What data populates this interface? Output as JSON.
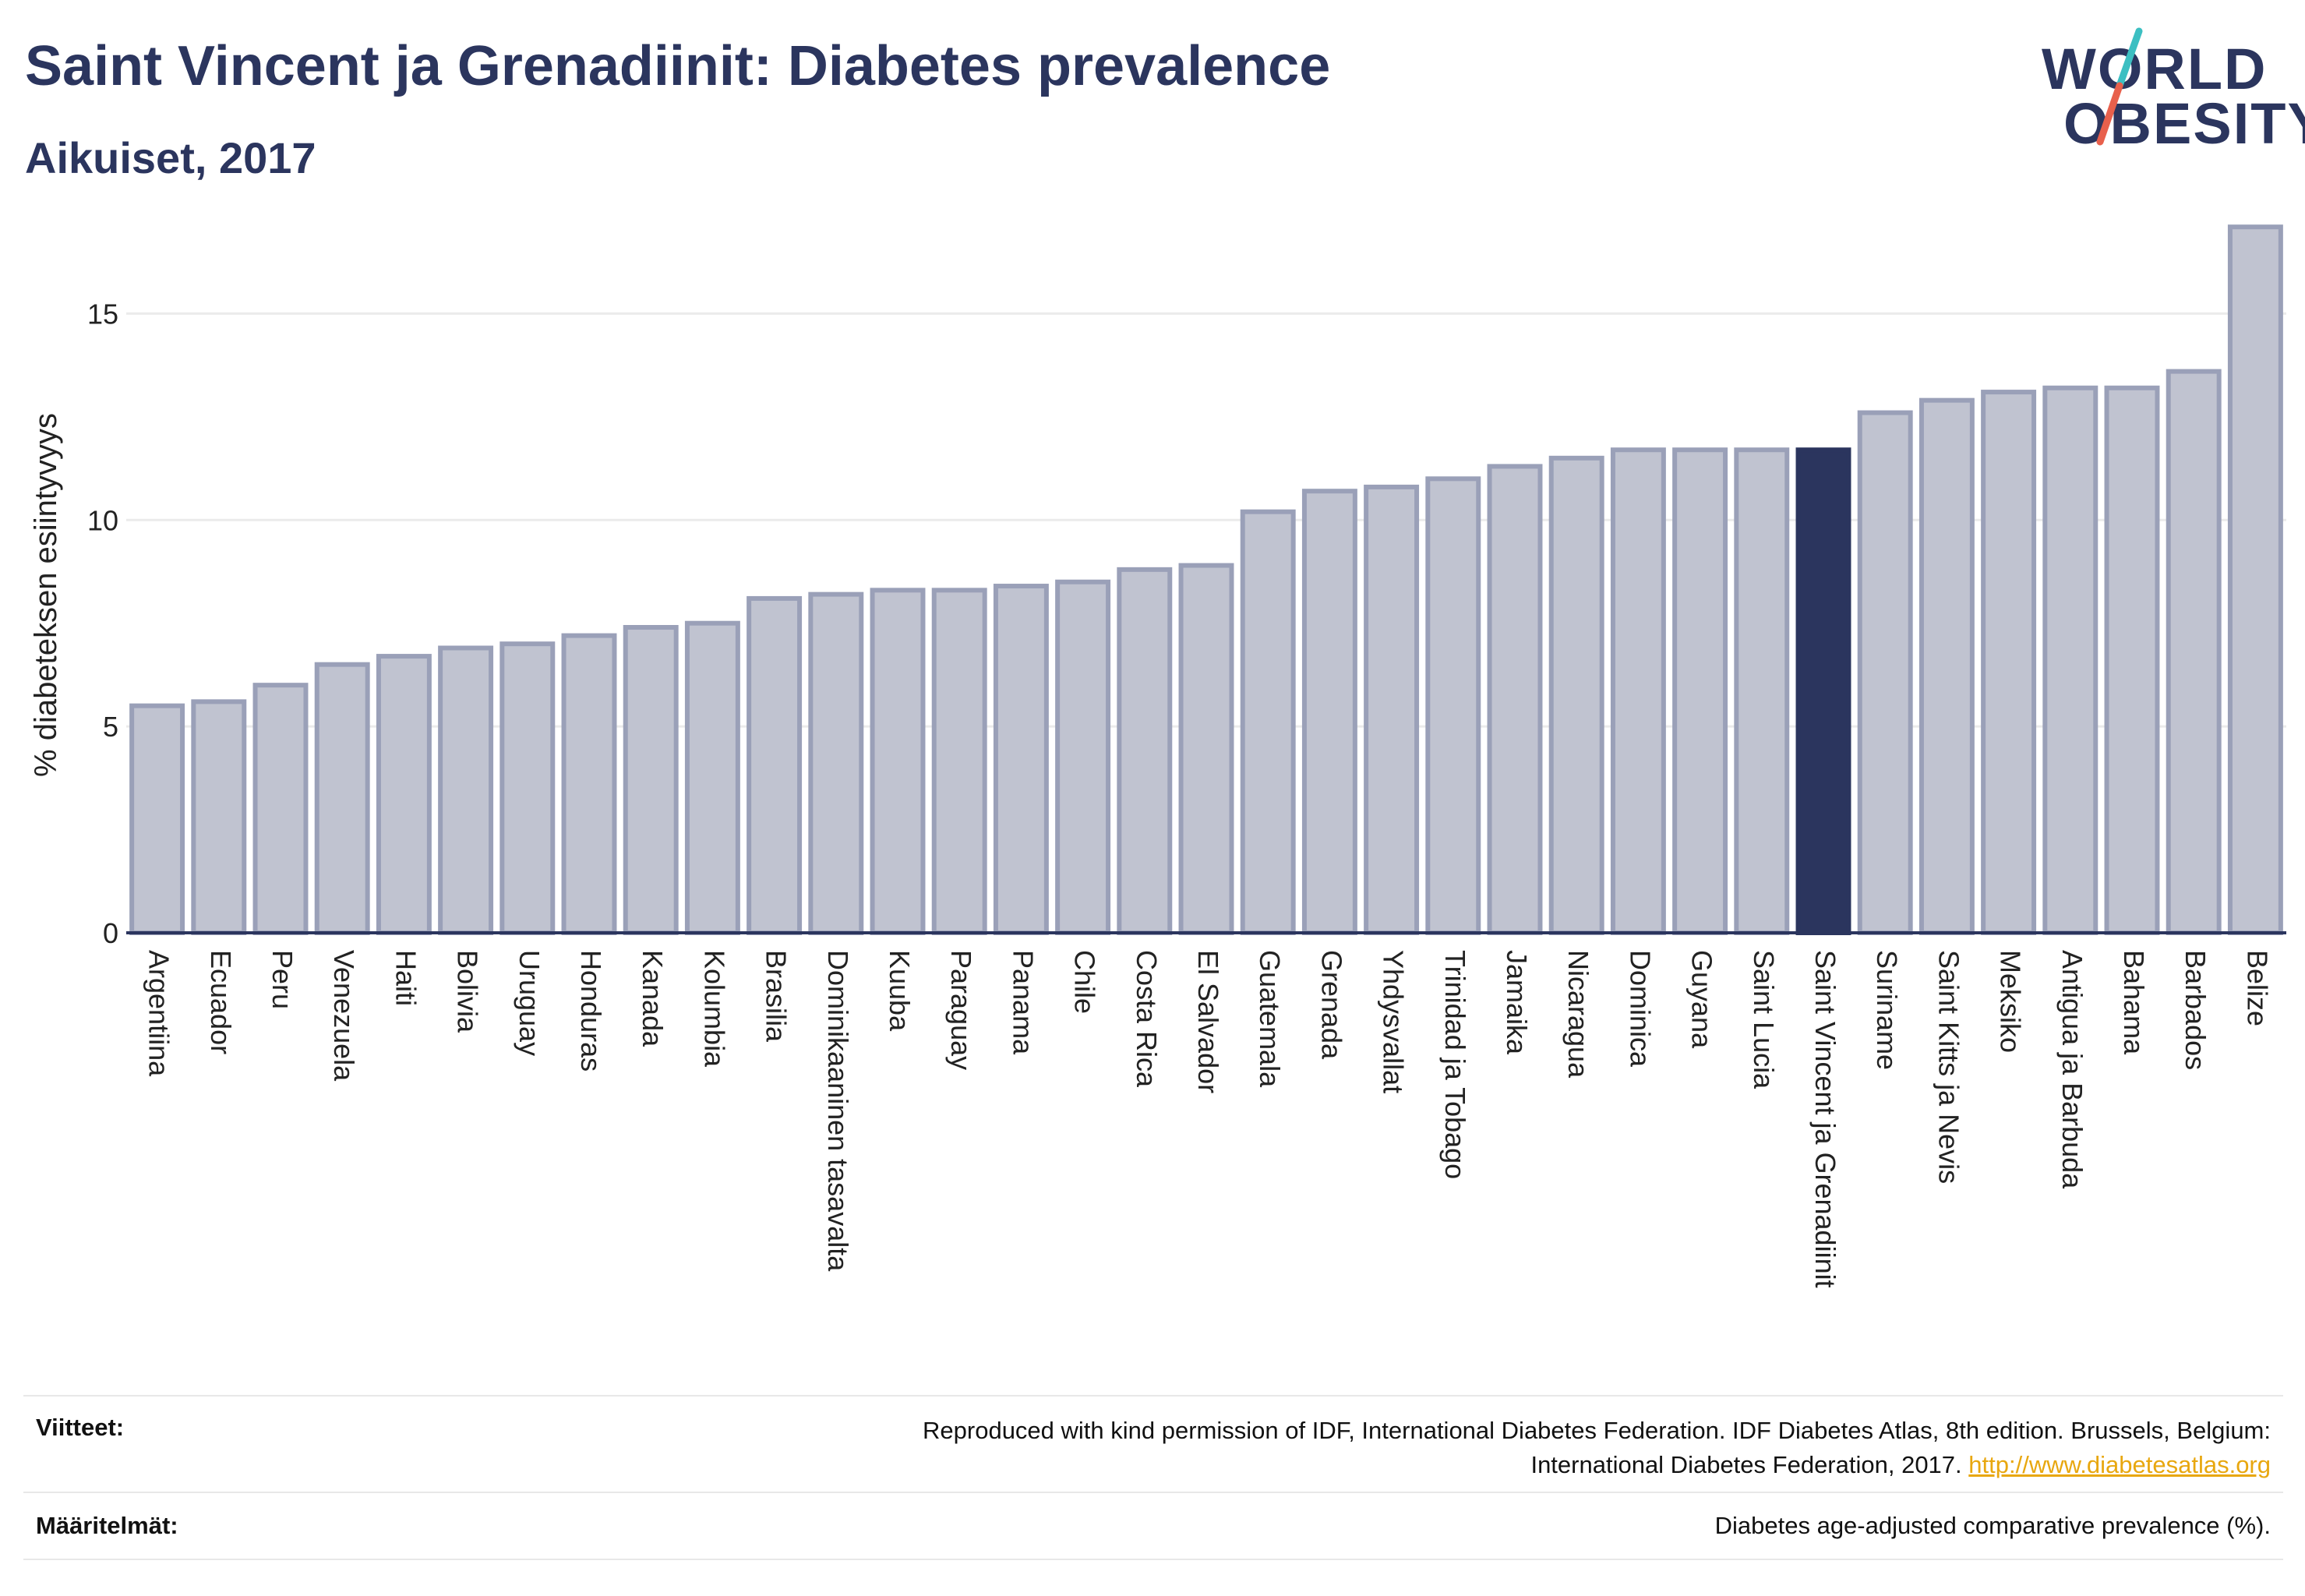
{
  "header": {
    "title": "Saint Vincent ja Grenadiinit: Diabetes prevalence",
    "subtitle": "Aikuiset, 2017"
  },
  "logo": {
    "line1": "WORLD",
    "line2": "OBESITY",
    "accent_colors": [
      "#3cbfc2",
      "#e8604c"
    ]
  },
  "footer": {
    "references_label": "Viitteet:",
    "references_line1": "Reproduced with kind permission of IDF, International Diabetes Federation. IDF Diabetes Atlas, 8th edition. Brussels, Belgium:",
    "references_line2": "International Diabetes Federation, 2017.",
    "references_link": "http://www.diabetesatlas.org",
    "definitions_label": "Määritelmät:",
    "definitions_text": "Diabetes age-adjusted comparative prevalence (%)."
  },
  "chart_data": {
    "type": "bar",
    "ylabel": "% diabeteksen esiintyvyys",
    "ylim": [
      0,
      17.5
    ],
    "yticks": [
      0,
      5,
      10,
      15
    ],
    "grid": true,
    "highlight": "Saint Vincent ja Grenadiinit",
    "colors": {
      "bar": "#c0c3d0",
      "bar_border": "#9aa0b8",
      "highlight": "#2b355e",
      "grid": "#ebebeb"
    },
    "categories": [
      "Argentiina",
      "Ecuador",
      "Peru",
      "Venezuela",
      "Haiti",
      "Bolivia",
      "Uruguay",
      "Honduras",
      "Kanada",
      "Kolumbia",
      "Brasilia",
      "Dominikaaninen tasavalta",
      "Kuuba",
      "Paraguay",
      "Panama",
      "Chile",
      "Costa Rica",
      "El Salvador",
      "Guatemala",
      "Grenada",
      "Yhdysvallat",
      "Trinidad ja Tobago",
      "Jamaika",
      "Nicaragua",
      "Dominica",
      "Guyana",
      "Saint Lucia",
      "Saint Vincent ja Grenadiinit",
      "Suriname",
      "Saint Kitts ja Nevis",
      "Meksiko",
      "Antigua ja Barbuda",
      "Bahama",
      "Barbados",
      "Belize"
    ],
    "values": [
      5.5,
      5.6,
      6.0,
      6.5,
      6.7,
      6.9,
      7.0,
      7.2,
      7.4,
      7.5,
      8.1,
      8.2,
      8.3,
      8.3,
      8.4,
      8.5,
      8.8,
      8.9,
      10.2,
      10.7,
      10.8,
      11.0,
      11.3,
      11.5,
      11.7,
      11.7,
      11.7,
      11.7,
      12.6,
      12.9,
      13.1,
      13.2,
      13.2,
      13.6,
      17.1
    ]
  }
}
